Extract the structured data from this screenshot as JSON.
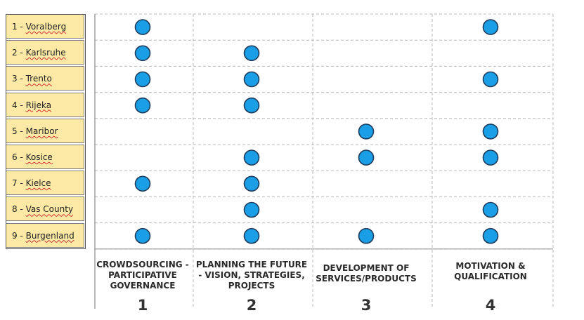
{
  "rows": [
    {
      "num": "1",
      "name": "Voralberg"
    },
    {
      "num": "2",
      "name": "Karlsruhe"
    },
    {
      "num": "3",
      "name": "Trento"
    },
    {
      "num": "4",
      "name": "Rijeka"
    },
    {
      "num": "5",
      "name": "Maribor"
    },
    {
      "num": "6",
      "name": "Kosice"
    },
    {
      "num": "7",
      "name": "Kielce"
    },
    {
      "num": "8",
      "name": "Vas County"
    },
    {
      "num": "9",
      "name": "Burgenland"
    }
  ],
  "columns": [
    {
      "lines": [
        "CROWDSOURCING -",
        "PARTICIPATIVE",
        "GOVERNANCE"
      ],
      "num": "1"
    },
    {
      "lines": [
        "PLANNING THE FUTURE",
        "- VISION, STRATEGIES,",
        "PROJECTS"
      ],
      "num": "2"
    },
    {
      "lines": [
        "DEVELOPMENT OF",
        "SERVICES/PRODUCTS"
      ],
      "num": "3"
    },
    {
      "lines": [
        "MOTIVATION &",
        "QUALIFICATION"
      ],
      "num": "4"
    }
  ],
  "matrix": [
    [
      1,
      0,
      0,
      1
    ],
    [
      1,
      1,
      0,
      0
    ],
    [
      1,
      1,
      0,
      1
    ],
    [
      1,
      1,
      0,
      0
    ],
    [
      0,
      0,
      1,
      1
    ],
    [
      0,
      1,
      1,
      1
    ],
    [
      1,
      1,
      0,
      0
    ],
    [
      0,
      1,
      0,
      1
    ],
    [
      1,
      1,
      1,
      1
    ]
  ],
  "colors": {
    "dot_fill": "#1a9ee6",
    "dot_stroke": "#1e3d5c",
    "grid": "#b8b8b8",
    "row_fill": "#fde9a6"
  }
}
